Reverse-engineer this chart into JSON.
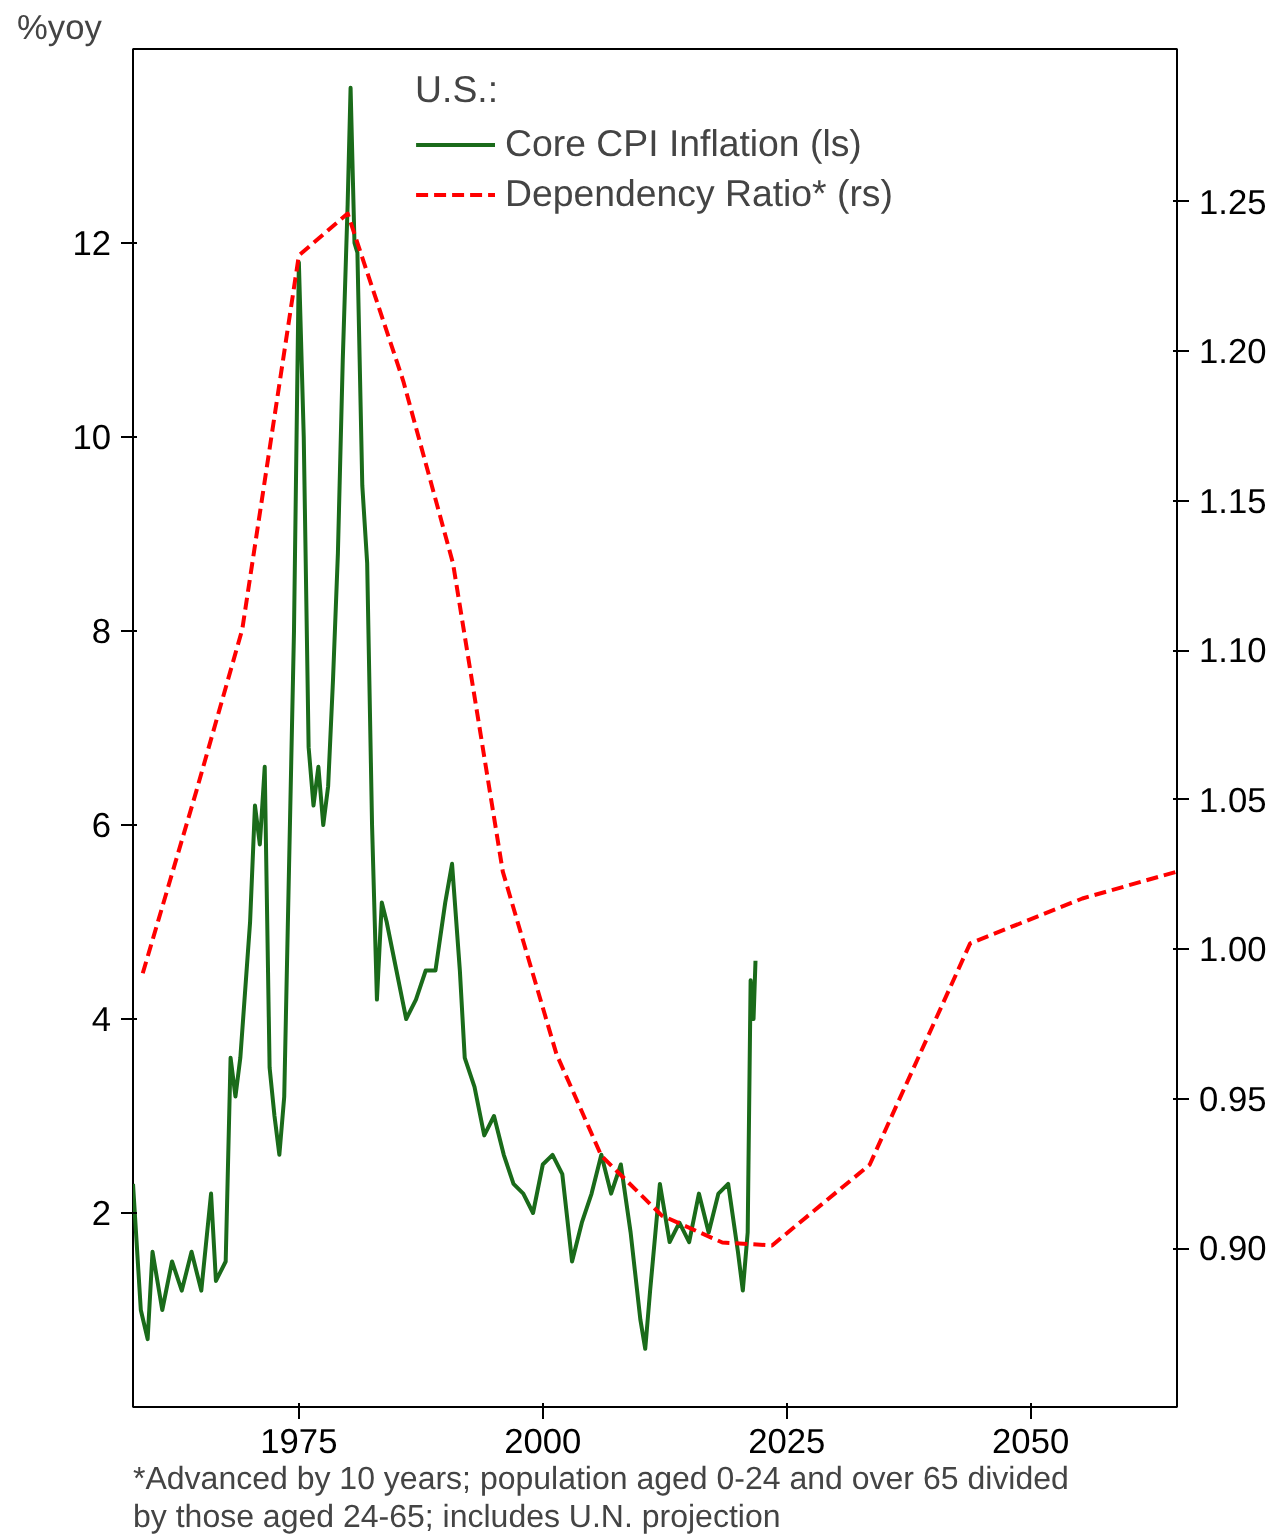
{
  "chart_data": {
    "type": "line",
    "ylabel": "%yoy",
    "legend_title": "U.S.:",
    "legend": "top",
    "grid": false,
    "xlim": [
      1958,
      2065
    ],
    "xticks": [
      1975,
      2000,
      2025,
      2050
    ],
    "ylim": [
      0,
      14
    ],
    "yticks": [
      2,
      4,
      6,
      8,
      10,
      12
    ],
    "y2lim": [
      0.847,
      1.301
    ],
    "y2ticks": [
      {
        "value": 0.9,
        "label": "0.90"
      },
      0.95,
      {
        "value": 1.0,
        "label": "1.00"
      },
      1.05,
      {
        "value": 1.1,
        "label": "1.10"
      },
      1.15,
      {
        "value": 1.2,
        "label": "1.20"
      },
      1.25
    ],
    "series": [
      {
        "name": "Core CPI Inflation (ls)",
        "color": "#1a6b1a",
        "line_style": "solid",
        "x": [
          1958.0,
          1958.8,
          1959.5,
          1960,
          1961,
          1962,
          1963,
          1964,
          1965,
          1966,
          1966.5,
          1967.5,
          1968.0,
          1968.5,
          1969,
          1970,
          1970.5,
          1971,
          1971.5,
          1972,
          1972.5,
          1973,
          1973.5,
          1974.5,
          1975,
          1975.5,
          1976,
          1976.5,
          1977,
          1977.5,
          1978,
          1978.5,
          1979,
          1979.5,
          1980,
          1980.3,
          1980.7,
          1981,
          1981.5,
          1982,
          1982.5,
          1983,
          1983.5,
          1984,
          1985,
          1986,
          1987,
          1988,
          1989,
          1990,
          1990.7,
          1991.5,
          1992,
          1993,
          1994,
          1995,
          1996,
          1997,
          1998,
          1999,
          2000,
          2001,
          2002,
          2003,
          2004,
          2005,
          2006,
          2007,
          2008,
          2009,
          2010,
          2010.5,
          2011,
          2012,
          2013,
          2014,
          2015,
          2016,
          2017,
          2018,
          2019,
          2020,
          2020.5,
          2021,
          2021.3,
          2021.6,
          2021.8
        ],
        "values": [
          2.3,
          1.0,
          0.7,
          1.6,
          1.0,
          1.5,
          1.2,
          1.6,
          1.2,
          2.2,
          1.3,
          1.5,
          3.6,
          3.2,
          3.6,
          5.0,
          6.2,
          5.8,
          6.6,
          3.5,
          3.0,
          2.6,
          3.2,
          8.0,
          11.8,
          10.0,
          6.8,
          6.2,
          6.6,
          6.0,
          6.4,
          7.5,
          8.8,
          10.8,
          12.4,
          13.6,
          12.0,
          11.9,
          9.5,
          8.7,
          6.0,
          4.2,
          5.2,
          5.0,
          4.5,
          4.0,
          4.2,
          4.5,
          4.5,
          5.2,
          5.6,
          4.5,
          3.6,
          3.3,
          2.8,
          3.0,
          2.6,
          2.3,
          2.2,
          2.0,
          2.5,
          2.6,
          2.4,
          1.5,
          1.9,
          2.2,
          2.6,
          2.2,
          2.5,
          1.8,
          0.9,
          0.6,
          1.2,
          2.3,
          1.7,
          1.9,
          1.7,
          2.2,
          1.8,
          2.2,
          2.3,
          1.6,
          1.2,
          1.8,
          4.4,
          4.0,
          4.6
        ]
      },
      {
        "name": "Dependency Ratio* (rs)",
        "color": "#ff0000",
        "line_style": "dashed",
        "axis": "y2",
        "x": [
          1959,
          1964.5,
          1969.2,
          1975,
          1980,
          1985.7,
          1990.8,
          1995.9,
          2001.4,
          2006,
          2012.2,
          2018.4,
          2023.5,
          2033.5,
          2043.8,
          2055.3,
          2065
        ],
        "values": [
          0.992,
          1.053,
          1.107,
          1.232,
          1.246,
          1.19,
          1.129,
          1.026,
          0.965,
          0.931,
          0.911,
          0.902,
          0.901,
          0.928,
          1.002,
          1.017,
          1.026
        ]
      }
    ],
    "annotations": [
      "*Advanced by 10 years; population aged 0-24 and over 65 divided by those aged 24-65; includes U.N. projection"
    ]
  }
}
